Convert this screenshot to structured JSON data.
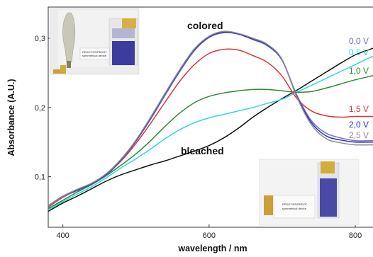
{
  "chart_data": {
    "type": "line",
    "xlabel": "wavelength / nm",
    "ylabel": "Absorbance (A.U.)",
    "xlim": [
      380,
      830
    ],
    "ylim": [
      0.027,
      0.345
    ],
    "x_ticks": [
      400,
      600,
      800
    ],
    "y_ticks": [
      0.1,
      0.2,
      0.3
    ],
    "x_tick_labels": [
      "400",
      "600",
      "800"
    ],
    "y_tick_labels": [
      "0,1",
      "0,2",
      "0,3"
    ],
    "grid": false,
    "legend_position": "right",
    "annotations": [
      {
        "text": "colored",
        "near": "peak of 0,0 V curve"
      },
      {
        "text": "bleached",
        "near": "2,5 V curve around 600 nm"
      }
    ],
    "insets": [
      {
        "position": "top-left",
        "device_label": [
          "PEDOT:PS/PEDOT",
          "symmetrical device"
        ]
      },
      {
        "position": "bottom-right",
        "device_label": [
          "PEDOT/PS/PEDOT",
          "symmetrical device"
        ]
      }
    ],
    "series": [
      {
        "name": "0,0 V",
        "color": "#6e6ebe",
        "x": [
          380,
          400,
          420,
          440,
          460,
          480,
          500,
          520,
          540,
          560,
          580,
          600,
          620,
          640,
          660,
          680,
          700,
          720,
          740,
          760,
          780,
          800,
          820,
          830
        ],
        "y": [
          0.057,
          0.071,
          0.08,
          0.09,
          0.103,
          0.124,
          0.151,
          0.183,
          0.218,
          0.252,
          0.282,
          0.301,
          0.308,
          0.306,
          0.298,
          0.289,
          0.268,
          0.218,
          0.181,
          0.163,
          0.156,
          0.152,
          0.152,
          0.152
        ]
      },
      {
        "name": "0,5 V",
        "color": "#2bd8e0",
        "x": [
          380,
          400,
          420,
          440,
          460,
          480,
          500,
          520,
          540,
          560,
          580,
          600,
          620,
          640,
          660,
          680,
          700,
          720,
          740,
          760,
          780,
          800,
          820,
          830
        ],
        "y": [
          0.052,
          0.064,
          0.075,
          0.086,
          0.099,
          0.113,
          0.126,
          0.14,
          0.155,
          0.168,
          0.178,
          0.185,
          0.19,
          0.195,
          0.2,
          0.206,
          0.212,
          0.222,
          0.232,
          0.242,
          0.252,
          0.262,
          0.272,
          0.276
        ]
      },
      {
        "name": "1,0 V",
        "color": "#2f8a2f",
        "x": [
          380,
          400,
          420,
          440,
          460,
          480,
          500,
          520,
          540,
          560,
          580,
          600,
          620,
          640,
          660,
          680,
          700,
          720,
          740,
          760,
          780,
          800,
          820,
          830
        ],
        "y": [
          0.054,
          0.066,
          0.078,
          0.089,
          0.102,
          0.117,
          0.133,
          0.152,
          0.173,
          0.192,
          0.207,
          0.216,
          0.221,
          0.224,
          0.226,
          0.226,
          0.224,
          0.222,
          0.223,
          0.228,
          0.234,
          0.24,
          0.245,
          0.248
        ]
      },
      {
        "name": "1,5 V",
        "color": "#e23434",
        "x": [
          380,
          400,
          420,
          440,
          460,
          480,
          500,
          520,
          540,
          560,
          580,
          600,
          620,
          640,
          660,
          680,
          700,
          720,
          740,
          760,
          780,
          800,
          820,
          830
        ],
        "y": [
          0.056,
          0.07,
          0.081,
          0.091,
          0.104,
          0.123,
          0.148,
          0.177,
          0.208,
          0.238,
          0.262,
          0.278,
          0.284,
          0.283,
          0.275,
          0.265,
          0.245,
          0.213,
          0.195,
          0.188,
          0.186,
          0.187,
          0.187,
          0.187
        ]
      },
      {
        "name": "2,0 V",
        "color": "#2a2ac8",
        "x": [
          380,
          400,
          420,
          440,
          460,
          480,
          500,
          520,
          540,
          560,
          580,
          600,
          620,
          640,
          660,
          680,
          700,
          720,
          740,
          760,
          780,
          800,
          820,
          830
        ],
        "y": [
          0.058,
          0.072,
          0.081,
          0.09,
          0.104,
          0.125,
          0.152,
          0.185,
          0.22,
          0.254,
          0.284,
          0.302,
          0.309,
          0.306,
          0.299,
          0.29,
          0.268,
          0.216,
          0.178,
          0.159,
          0.153,
          0.15,
          0.15,
          0.15
        ]
      },
      {
        "name": "2,5 V",
        "color": "#8c8c8c",
        "x": [
          380,
          400,
          420,
          440,
          460,
          480,
          500,
          520,
          540,
          560,
          580,
          600,
          620,
          640,
          660,
          680,
          700,
          720,
          740,
          760,
          780,
          800,
          820,
          830
        ],
        "y": [
          0.058,
          0.072,
          0.082,
          0.091,
          0.105,
          0.126,
          0.153,
          0.186,
          0.221,
          0.255,
          0.285,
          0.303,
          0.31,
          0.307,
          0.3,
          0.291,
          0.269,
          0.215,
          0.175,
          0.155,
          0.149,
          0.146,
          0.146,
          0.146
        ]
      },
      {
        "name": "",
        "color": "#111111",
        "x": [
          380,
          400,
          420,
          440,
          460,
          480,
          500,
          520,
          540,
          560,
          580,
          600,
          620,
          640,
          660,
          680,
          700,
          720,
          740,
          760,
          780,
          800,
          820,
          830
        ],
        "y": [
          0.05,
          0.062,
          0.072,
          0.083,
          0.094,
          0.103,
          0.11,
          0.117,
          0.123,
          0.13,
          0.137,
          0.145,
          0.156,
          0.17,
          0.186,
          0.2,
          0.213,
          0.225,
          0.238,
          0.251,
          0.264,
          0.276,
          0.284,
          0.288
        ]
      }
    ]
  }
}
